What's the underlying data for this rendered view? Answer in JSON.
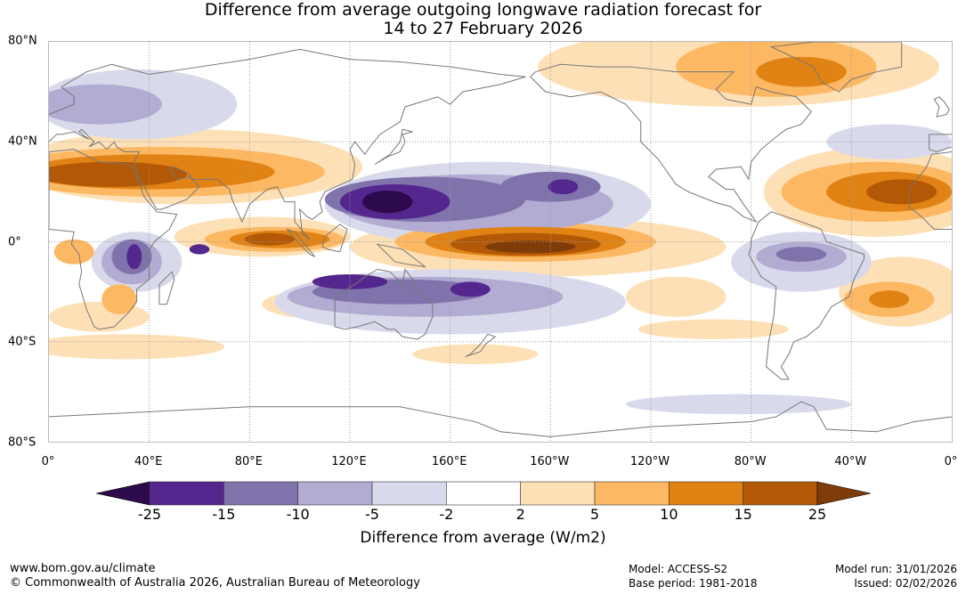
{
  "title": {
    "line1": "Difference from average outgoing longwave radiation forecast for",
    "line2": "14 to 27 February 2026"
  },
  "map": {
    "lat_labels": [
      {
        "lat": 80,
        "text": "80°N"
      },
      {
        "lat": 40,
        "text": "40°N"
      },
      {
        "lat": 0,
        "text": "0°"
      },
      {
        "lat": -40,
        "text": "40°S"
      },
      {
        "lat": -80,
        "text": "80°S"
      }
    ],
    "lon_labels": [
      {
        "lon": 0,
        "text": "0°"
      },
      {
        "lon": 40,
        "text": "40°E"
      },
      {
        "lon": 80,
        "text": "80°E"
      },
      {
        "lon": 120,
        "text": "120°E"
      },
      {
        "lon": 160,
        "text": "160°E"
      },
      {
        "lon": 200,
        "text": "160°W"
      },
      {
        "lon": 240,
        "text": "120°W"
      },
      {
        "lon": 280,
        "text": "80°W"
      },
      {
        "lon": 320,
        "text": "40°W"
      },
      {
        "lon": 360,
        "text": "0°"
      }
    ]
  },
  "colorbar": {
    "title": "Difference from average (W/m2)",
    "ticks": [
      "-25",
      "-15",
      "-10",
      "-5",
      "-2",
      "2",
      "5",
      "10",
      "15",
      "25"
    ],
    "extend_low_color": "#2d0a4b",
    "extend_high_color": "#7f3b08",
    "colors": [
      "#54278f",
      "#8073ac",
      "#b2abd2",
      "#d8daeb",
      "#ffffff",
      "#fee0b6",
      "#fdb863",
      "#e08214",
      "#b35806"
    ]
  },
  "footer": {
    "url": "www.bom.gov.au/climate",
    "copyright": "© Commonwealth of Australia 2026, Australian Bureau of Meteorology",
    "model": "Model: ACCESS-S2",
    "base_period": "Base period: 1981-2018",
    "model_run": "Model run: 31/01/2026",
    "issued": "Issued: 02/02/2026"
  }
}
